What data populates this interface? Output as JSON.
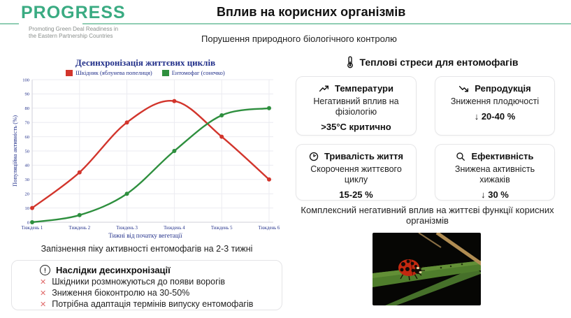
{
  "header": {
    "logo_title": "PROGRESS",
    "logo_subtitle_1": "Promoting Green Deal Readiness in",
    "logo_subtitle_2": "the Eastern Partnership Countries",
    "title": "Вплив на корисних організмів",
    "subtitle": "Порушення природного біологічного контролю"
  },
  "chart_data": {
    "type": "line",
    "title": "Десинхронізація життєвих циклів",
    "categories": [
      "Тиждень 1",
      "Тиждень 2",
      "Тиждень 3",
      "Тиждень 4",
      "Тиждень 5",
      "Тиждень 6"
    ],
    "series": [
      {
        "name": "Шкідник (яблунева попелиця)",
        "color": "#d2352c",
        "values": [
          10,
          35,
          70,
          85,
          60,
          30
        ]
      },
      {
        "name": "Ентомофаг (сонечко)",
        "color": "#2e8f3e",
        "values": [
          0,
          5,
          20,
          50,
          75,
          80
        ]
      }
    ],
    "xlabel": "Тижні від початку вегетації",
    "ylabel": "Популяційна активність (%)",
    "ylim": [
      0,
      100
    ],
    "ytick_step": 10,
    "grid": true,
    "legend_position": "top"
  },
  "chart_caption": "Запізнення піку активності ентомофагів на 2-3 тижні",
  "consequences": {
    "title": "Наслідки десинхронізації",
    "items": [
      "Шкідники розмножуються до появи ворогів",
      "Зниження біоконтролю на 30-50%",
      "Потрібна адаптація термінів випуску ентомофагів"
    ]
  },
  "stress": {
    "title": "Теплові стреси для ентомофагів",
    "cards": [
      {
        "icon": "trending-up-icon",
        "title": "Температури",
        "body": "Негативний вплив на фізіологію",
        "stat": ">35°C критично"
      },
      {
        "icon": "trending-down-icon",
        "title": "Репродукція",
        "body": "Зниження плодючості",
        "stat": "↓ 20-40 %"
      },
      {
        "icon": "clock-icon",
        "title": "Тривалість життя",
        "body": "Скорочення життєвого циклу",
        "stat": "15-25 %"
      },
      {
        "icon": "magnifier-icon",
        "title": "Ефективність",
        "body": "Знижена активність хижаків",
        "stat": "↓ 30 %"
      }
    ],
    "footer": "Комплексний негативний вплив на життєві функції корисних організмів"
  },
  "colors": {
    "brand_green": "#3aab82",
    "rule_green": "#8fcdb4",
    "pest_red": "#d2352c",
    "entomophage_green": "#2e8f3e",
    "chart_text_navy": "#22308a",
    "x_mark_red": "#e06a6a",
    "grid_gray": "#ebebf1"
  }
}
